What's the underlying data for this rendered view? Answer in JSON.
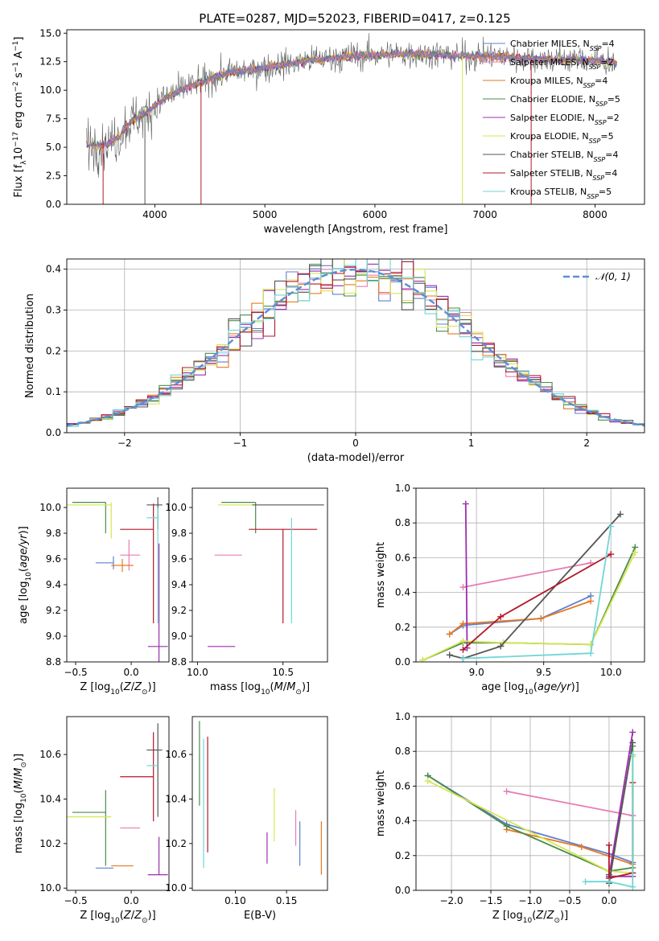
{
  "title": "PLATE=0287, MJD=52023, FIBERID=0417, z=0.125",
  "models": [
    {
      "name": "Chabrier MILES",
      "nssp": "4",
      "color": "#5f7fd0"
    },
    {
      "name": "Salpeter MILES",
      "nssp": "2",
      "color": "#e67db4"
    },
    {
      "name": "Kroupa MILES",
      "nssp": "4",
      "color": "#e67a21"
    },
    {
      "name": "Chabrier ELODIE",
      "nssp": "5",
      "color": "#4a8a4a"
    },
    {
      "name": "Salpeter ELODIE",
      "nssp": "2",
      "color": "#9b2fae"
    },
    {
      "name": "Kroupa ELODIE",
      "nssp": "5",
      "color": "#d6e651"
    },
    {
      "name": "Chabrier STELIB",
      "nssp": "4",
      "color": "#555555"
    },
    {
      "name": "Salpeter STELIB",
      "nssp": "4",
      "color": "#b2182b"
    },
    {
      "name": "Kroupa STELIB",
      "nssp": "5",
      "color": "#6fd6d6"
    }
  ],
  "chart_data": [
    {
      "panel": "spectrum",
      "type": "line",
      "xlabel": "wavelength [Angstrom, rest frame]",
      "ylabel": "Flux [f_λ 10^-17 erg cm^-2 s^-1 A^-1]",
      "xlim": [
        3200,
        8450
      ],
      "ylim": [
        0,
        15.3
      ],
      "xticks": [
        "4000",
        "5000",
        "6000",
        "7000",
        "8000"
      ],
      "yticks": [
        "0.0",
        "2.5",
        "5.0",
        "7.5",
        "10.0",
        "12.5",
        "15.0"
      ],
      "legend_position": "upper right",
      "continuum": {
        "wavelength": [
          3380,
          3500,
          3600,
          3700,
          3800,
          3900,
          4000,
          4100,
          4200,
          4300,
          4400,
          4500,
          4600,
          4700,
          4800,
          4900,
          5000,
          5200,
          5400,
          5600,
          5800,
          6000,
          6200,
          6400,
          6600,
          6800,
          7000,
          7200,
          7400,
          7600,
          7800,
          8000,
          8200
        ],
        "flux": [
          5.6,
          5.5,
          5.8,
          6.5,
          7.4,
          7.9,
          8.6,
          9.4,
          9.8,
          10.3,
          10.6,
          11.0,
          11.3,
          11.6,
          11.7,
          11.8,
          12.0,
          12.3,
          12.6,
          12.8,
          13.0,
          13.1,
          13.2,
          13.2,
          13.1,
          13.0,
          13.0,
          12.9,
          12.8,
          12.7,
          12.7,
          12.6,
          12.4
        ]
      },
      "drops": [
        {
          "model": "Salpeter STELIB",
          "wavelength": 3530,
          "flux_to": 0.0
        },
        {
          "model": "Chabrier STELIB",
          "wavelength": 3910,
          "flux_to": 0.0
        },
        {
          "model": "Salpeter STELIB",
          "wavelength": 4420,
          "flux_to": 0.0
        },
        {
          "model": "Kroupa ELODIE",
          "wavelength": 6795,
          "flux_to": 0.0
        },
        {
          "model": "Salpeter STELIB",
          "wavelength": 7420,
          "flux_to": 0.0
        }
      ]
    },
    {
      "panel": "residual_histogram",
      "type": "line",
      "xlabel": "(data-model)/error",
      "ylabel": "Normed distribution",
      "xlim": [
        -2.5,
        2.5
      ],
      "ylim": [
        0,
        0.425
      ],
      "xticks": [
        "-2",
        "-1",
        "0",
        "1",
        "2"
      ],
      "yticks": [
        "0.0",
        "0.1",
        "0.2",
        "0.3",
        "0.4"
      ],
      "grid": true,
      "reference_curve": "N(0,1)",
      "reference_label": "𝒩(0, 1)",
      "bin_width": 0.1,
      "bin_start": -2.5,
      "note": "each model is a step histogram close to a unit normal"
    },
    {
      "panel": "age_vs_Z",
      "type": "scatter",
      "xlabel": "Z [log10(Z/Z⊙)]",
      "ylabel": "age [log10(age/yr)]",
      "xlim": [
        -0.58,
        0.34
      ],
      "ylim": [
        8.8,
        10.15
      ],
      "xticks": [
        "-0.5",
        "0.0"
      ],
      "yticks": [
        "8.8",
        "9.0",
        "9.2",
        "9.4",
        "9.6",
        "9.8",
        "10.0"
      ],
      "errorbars": [
        {
          "model": "Chabrier MILES",
          "x": -0.16,
          "xerr": [
            0.16,
            0.0
          ],
          "y": 9.57,
          "yerr": [
            0.05,
            0.05
          ]
        },
        {
          "model": "Salpeter MILES",
          "x": -0.02,
          "xerr": [
            0.08,
            0.1
          ],
          "y": 9.63,
          "yerr": [
            0.12,
            0.12
          ]
        },
        {
          "model": "Kroupa MILES",
          "x": -0.08,
          "xerr": [
            0.1,
            0.1
          ],
          "y": 9.55,
          "yerr": [
            0.05,
            0.05
          ]
        },
        {
          "model": "Chabrier ELODIE",
          "x": -0.23,
          "xerr": [
            0.3,
            0.0
          ],
          "y": 10.04,
          "yerr": [
            0.24,
            0.0
          ]
        },
        {
          "model": "Salpeter ELODIE",
          "x": 0.25,
          "xerr": [
            0.1,
            0.08
          ],
          "y": 8.92,
          "yerr": [
            0.13,
            0.8
          ]
        },
        {
          "model": "Kroupa ELODIE",
          "x": -0.18,
          "xerr": [
            0.4,
            0.0
          ],
          "y": 10.02,
          "yerr": [
            0.26,
            0.02
          ]
        },
        {
          "model": "Chabrier STELIB",
          "x": 0.24,
          "xerr": [
            0.1,
            0.04
          ],
          "y": 10.02,
          "yerr": [
            0.19,
            0.06
          ]
        },
        {
          "model": "Salpeter STELIB",
          "x": 0.2,
          "xerr": [
            0.3,
            0.0
          ],
          "y": 9.83,
          "yerr": [
            0.73,
            0.2
          ]
        },
        {
          "model": "Kroupa STELIB",
          "x": 0.24,
          "xerr": [
            0.1,
            0.0
          ],
          "y": 9.92,
          "yerr": [
            0.82,
            0.08
          ]
        }
      ]
    },
    {
      "panel": "age_vs_mass",
      "type": "scatter",
      "xlabel": "mass [log10(M/M⊙)]",
      "ylabel": "",
      "xlim": [
        9.97,
        10.76
      ],
      "ylim": [
        8.8,
        10.15
      ],
      "xticks": [
        "10.0",
        "10.5"
      ],
      "yticks": [
        "8.8",
        "9.0",
        "9.2",
        "9.4",
        "9.6",
        "9.8",
        "10.0"
      ],
      "errorbars": [
        {
          "model": "Chabrier MILES",
          "x": 10.09,
          "xerr": [
            0.0,
            0.0
          ],
          "y": 9.57,
          "yerr": [
            0.0,
            0.0
          ]
        },
        {
          "model": "Salpeter MILES",
          "x": 10.2,
          "xerr": [
            0.1,
            0.06
          ],
          "y": 9.63,
          "yerr": [
            0.0,
            0.0
          ]
        },
        {
          "model": "Kroupa MILES",
          "x": 10.1,
          "xerr": [
            0.0,
            0.0
          ],
          "y": 9.55,
          "yerr": [
            0.0,
            0.0
          ]
        },
        {
          "model": "Chabrier ELODIE",
          "x": 10.34,
          "xerr": [
            0.2,
            0.0
          ],
          "y": 10.04,
          "yerr": [
            0.24,
            0.0
          ]
        },
        {
          "model": "Salpeter ELODIE",
          "x": 10.06,
          "xerr": [
            0.0,
            0.16
          ],
          "y": 8.92,
          "yerr": [
            0.0,
            0.0
          ]
        },
        {
          "model": "Kroupa ELODIE",
          "x": 10.32,
          "xerr": [
            0.2,
            0.0
          ],
          "y": 10.02,
          "yerr": [
            0.0,
            0.0
          ]
        },
        {
          "model": "Chabrier STELIB",
          "x": 10.62,
          "xerr": [
            0.3,
            0.12
          ],
          "y": 10.02,
          "yerr": [
            0.0,
            0.0
          ]
        },
        {
          "model": "Salpeter STELIB",
          "x": 10.5,
          "xerr": [
            0.2,
            0.2
          ],
          "y": 9.83,
          "yerr": [
            0.73,
            0.0
          ]
        },
        {
          "model": "Kroupa STELIB",
          "x": 10.55,
          "xerr": [
            0.0,
            0.0
          ],
          "y": 9.92,
          "yerr": [
            0.82,
            0.0
          ]
        }
      ]
    },
    {
      "panel": "weight_vs_age",
      "type": "line",
      "xlabel": "age [log10(age/yr)]",
      "ylabel": "mass weight",
      "xlim": [
        8.55,
        10.25
      ],
      "ylim": [
        0,
        1.0
      ],
      "xticks": [
        "9.0",
        "9.5",
        "10.0"
      ],
      "yticks": [
        "0.0",
        "0.2",
        "0.4",
        "0.6",
        "0.8",
        "1.0"
      ],
      "grid": true,
      "series": [
        {
          "model": "Chabrier MILES",
          "x": [
            8.8,
            8.9,
            9.48,
            9.85
          ],
          "y": [
            0.16,
            0.21,
            0.25,
            0.38
          ]
        },
        {
          "model": "Salpeter MILES",
          "x": [
            8.9,
            9.85
          ],
          "y": [
            0.43,
            0.57
          ]
        },
        {
          "model": "Kroupa MILES",
          "x": [
            8.8,
            8.9,
            9.48,
            9.85
          ],
          "y": [
            0.16,
            0.22,
            0.25,
            0.35
          ]
        },
        {
          "model": "Chabrier ELODIE",
          "x": [
            8.6,
            8.9,
            9.2,
            9.85,
            10.18
          ],
          "y": [
            0.01,
            0.11,
            0.11,
            0.1,
            0.66
          ]
        },
        {
          "model": "Salpeter ELODIE",
          "x": [
            8.92,
            8.93
          ],
          "y": [
            0.91,
            0.08
          ]
        },
        {
          "model": "Kroupa ELODIE",
          "x": [
            8.6,
            8.9,
            9.2,
            9.85,
            10.18
          ],
          "y": [
            0.01,
            0.12,
            0.11,
            0.1,
            0.63
          ]
        },
        {
          "model": "Chabrier STELIB",
          "x": [
            8.8,
            8.9,
            9.18,
            10.07
          ],
          "y": [
            0.04,
            0.02,
            0.09,
            0.85
          ]
        },
        {
          "model": "Salpeter STELIB",
          "x": [
            8.9,
            9.18,
            10.0
          ],
          "y": [
            0.07,
            0.26,
            0.62
          ]
        },
        {
          "model": "Kroupa STELIB",
          "x": [
            8.9,
            9.85,
            10.0
          ],
          "y": [
            0.02,
            0.05,
            0.78
          ]
        }
      ]
    },
    {
      "panel": "mass_vs_Z",
      "type": "scatter",
      "xlabel": "Z [log10(Z/Z⊙)]",
      "ylabel": "mass [log10(M/M⊙)]",
      "xlim": [
        -0.58,
        0.34
      ],
      "ylim": [
        9.99,
        10.77
      ],
      "xticks": [
        "-0.5",
        "0.0"
      ],
      "yticks": [
        "10.0",
        "10.2",
        "10.4",
        "10.6"
      ],
      "errorbars": [
        {
          "model": "Chabrier MILES",
          "x": -0.16,
          "xerr": [
            0.16,
            0.0
          ],
          "y": 10.09,
          "yerr": [
            0.0,
            0.0
          ]
        },
        {
          "model": "Salpeter MILES",
          "x": -0.02,
          "xerr": [
            0.08,
            0.1
          ],
          "y": 10.27,
          "yerr": [
            0.0,
            0.0
          ]
        },
        {
          "model": "Kroupa MILES",
          "x": -0.08,
          "xerr": [
            0.1,
            0.1
          ],
          "y": 10.1,
          "yerr": [
            0.0,
            0.0
          ]
        },
        {
          "model": "Chabrier ELODIE",
          "x": -0.23,
          "xerr": [
            0.3,
            0.0
          ],
          "y": 10.34,
          "yerr": [
            0.24,
            0.1
          ]
        },
        {
          "model": "Salpeter ELODIE",
          "x": 0.25,
          "xerr": [
            0.1,
            0.08
          ],
          "y": 10.06,
          "yerr": [
            0.0,
            0.17
          ]
        },
        {
          "model": "Kroupa ELODIE",
          "x": -0.18,
          "xerr": [
            0.4,
            0.0
          ],
          "y": 10.32,
          "yerr": [
            0.0,
            0.0
          ]
        },
        {
          "model": "Chabrier STELIB",
          "x": 0.24,
          "xerr": [
            0.1,
            0.04
          ],
          "y": 10.62,
          "yerr": [
            0.3,
            0.12
          ]
        },
        {
          "model": "Salpeter STELIB",
          "x": 0.2,
          "xerr": [
            0.3,
            0.0
          ],
          "y": 10.5,
          "yerr": [
            0.2,
            0.2
          ]
        },
        {
          "model": "Kroupa STELIB",
          "x": 0.24,
          "xerr": [
            0.1,
            0.0
          ],
          "y": 10.55,
          "yerr": [
            0.0,
            0.0
          ]
        }
      ]
    },
    {
      "panel": "mass_vs_EBV",
      "type": "scatter",
      "xlabel": "E(B-V)",
      "ylabel": "",
      "xlim": [
        0.058,
        0.19
      ],
      "ylim": [
        9.99,
        10.77
      ],
      "xticks": [
        "0.10",
        "0.15"
      ],
      "yticks": [
        "10.0",
        "10.2",
        "10.4",
        "10.6"
      ],
      "errorbars": [
        {
          "model": "Chabrier MILES",
          "x": 0.163,
          "y": 10.2,
          "yerr": [
            0.1,
            0.1
          ]
        },
        {
          "model": "Salpeter MILES",
          "x": 0.159,
          "y": 10.27,
          "yerr": [
            0.08,
            0.08
          ]
        },
        {
          "model": "Kroupa MILES",
          "x": 0.184,
          "y": 10.18,
          "yerr": [
            0.12,
            0.12
          ]
        },
        {
          "model": "Chabrier ELODIE",
          "x": 0.065,
          "y": 10.56,
          "yerr": [
            0.19,
            0.19
          ]
        },
        {
          "model": "Salpeter ELODIE",
          "x": 0.131,
          "y": 10.18,
          "yerr": [
            0.07,
            0.07
          ]
        },
        {
          "model": "Kroupa ELODIE",
          "x": 0.138,
          "y": 10.33,
          "yerr": [
            0.12,
            0.12
          ]
        },
        {
          "model": "Chabrier STELIB",
          "x": 0.065,
          "y": 10.62,
          "yerr": [
            0.0,
            0.0
          ]
        },
        {
          "model": "Salpeter STELIB",
          "x": 0.073,
          "y": 10.42,
          "yerr": [
            0.26,
            0.26
          ]
        },
        {
          "model": "Kroupa STELIB",
          "x": 0.069,
          "y": 10.38,
          "yerr": [
            0.29,
            0.29
          ]
        }
      ]
    },
    {
      "panel": "weight_vs_Z",
      "type": "line",
      "xlabel": "Z [log10(Z/Z⊙)]",
      "ylabel": "mass weight",
      "xlim": [
        -2.45,
        0.45
      ],
      "ylim": [
        0,
        1.0
      ],
      "xticks": [
        "-2.0",
        "-1.5",
        "-1.0",
        "-0.5",
        "0.0"
      ],
      "yticks": [
        "0.0",
        "0.2",
        "0.4",
        "0.6",
        "0.8",
        "1.0"
      ],
      "grid": true,
      "series": [
        {
          "model": "Chabrier MILES",
          "x": [
            -2.3,
            -1.3,
            0.0,
            0.3
          ],
          "y": [
            0.66,
            0.38,
            0.21,
            0.16
          ]
        },
        {
          "model": "Salpeter MILES",
          "x": [
            -1.3,
            0.3
          ],
          "y": [
            0.57,
            0.43
          ]
        },
        {
          "model": "Kroupa MILES",
          "x": [
            -1.3,
            -0.35,
            0.3
          ],
          "y": [
            0.35,
            0.25,
            0.15
          ]
        },
        {
          "model": "Chabrier ELODIE",
          "x": [
            -2.3,
            -1.3,
            0.0,
            0.3,
            0.3
          ],
          "y": [
            0.66,
            0.37,
            0.11,
            0.13,
            0.83
          ]
        },
        {
          "model": "Salpeter ELODIE",
          "x": [
            0.3,
            0.0,
            0.3
          ],
          "y": [
            0.91,
            0.08,
            0.08
          ]
        },
        {
          "model": "Kroupa ELODIE",
          "x": [
            -2.3,
            0.0,
            0.3,
            0.3
          ],
          "y": [
            0.63,
            0.11,
            0.1,
            0.77
          ]
        },
        {
          "model": "Chabrier STELIB",
          "x": [
            0.0,
            0.0,
            0.3
          ],
          "y": [
            0.09,
            0.04,
            0.85
          ]
        },
        {
          "model": "Salpeter STELIB",
          "x": [
            0.0,
            0.0,
            0.3,
            0.3
          ],
          "y": [
            0.26,
            0.07,
            0.1,
            0.62
          ]
        },
        {
          "model": "Kroupa STELIB",
          "x": [
            -0.3,
            0.0,
            0.3,
            0.3
          ],
          "y": [
            0.05,
            0.05,
            0.02,
            0.78
          ]
        }
      ]
    }
  ]
}
